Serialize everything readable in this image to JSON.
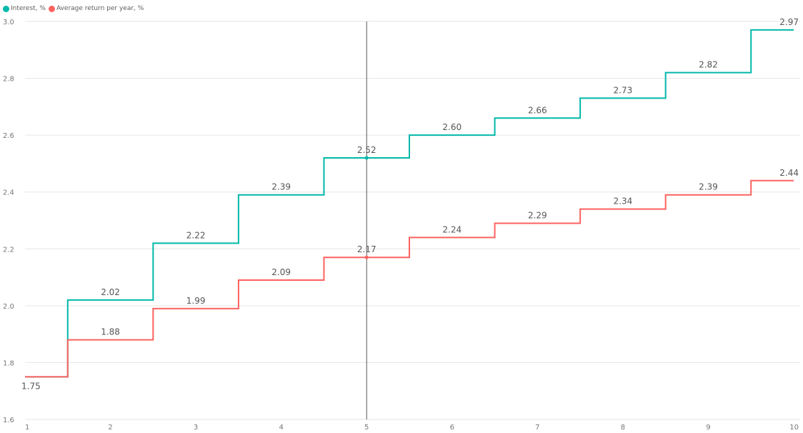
{
  "chart_data": {
    "type": "line",
    "step": true,
    "x": [
      1,
      2,
      3,
      4,
      5,
      6,
      7,
      8,
      9,
      10
    ],
    "series": [
      {
        "name": "Interest, %",
        "color": "#01b8aa",
        "values": [
          1.75,
          2.02,
          2.22,
          2.39,
          2.52,
          2.6,
          2.66,
          2.73,
          2.82,
          2.97
        ],
        "labels": [
          "",
          "2.02",
          "2.22",
          "2.39",
          "2.52",
          "2.60",
          "2.66",
          "2.73",
          "2.82",
          "2.97"
        ]
      },
      {
        "name": "Average return per year, %",
        "color": "#fd625e",
        "values": [
          1.75,
          1.88,
          1.99,
          2.09,
          2.17,
          2.24,
          2.29,
          2.34,
          2.39,
          2.44
        ],
        "labels": [
          "1.75",
          "1.88",
          "1.99",
          "2.09",
          "2.17",
          "2.24",
          "2.29",
          "2.34",
          "2.39",
          "2.44"
        ]
      }
    ],
    "ylim": [
      1.6,
      3.0
    ],
    "y_ticks": [
      "1.6",
      "1.8",
      "2.0",
      "2.2",
      "2.4",
      "2.6",
      "2.8",
      "3.0"
    ],
    "x_ticks": [
      "1",
      "2",
      "3",
      "4",
      "5",
      "6",
      "7",
      "8",
      "9",
      "10"
    ],
    "grid": true,
    "legend": "top-left",
    "highlight_x": 5
  }
}
